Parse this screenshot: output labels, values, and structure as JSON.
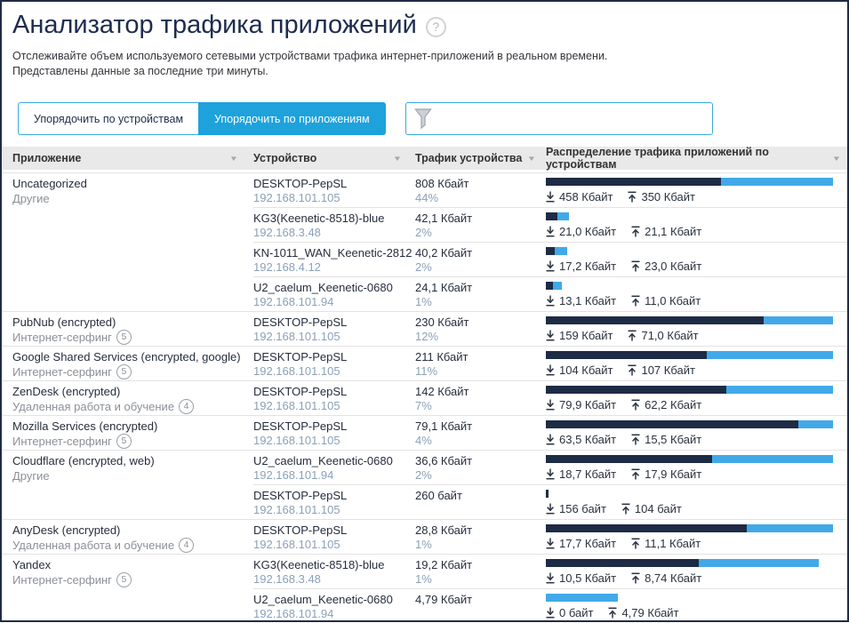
{
  "page": {
    "title": "Анализатор трафика приложений",
    "help_icon": "?",
    "subtitle_line1": "Отслеживайте объем используемого сетевыми устройствами трафика интернет-приложений в реальном времени.",
    "subtitle_line2": "Представлены данные за последние три минуты."
  },
  "toolbar": {
    "sort_by_devices_label": "Упорядочить по устройствам",
    "sort_by_apps_label": "Упорядочить по приложениям",
    "filter_placeholder": ""
  },
  "table": {
    "sort_icon": "▼",
    "columns": [
      "Приложение",
      "Устройство",
      "Трафик устройства",
      "Распределение трафика приложений по устройствам"
    ],
    "groups": [
      {
        "app": "Uncategorized",
        "category": "Другие",
        "category_count": null,
        "devices": [
          {
            "name": "DESKTOP-PepSL",
            "ip": "192.168.101.105",
            "traffic": "808 Кбайт",
            "percent": "44%",
            "down_label": "458 Кбайт",
            "up_label": "350 Кбайт",
            "bar": {
              "width_pct": 100,
              "down_pct": 61
            }
          },
          {
            "name": "KG3(Keenetic-8518)-blue",
            "ip": "192.168.3.48",
            "traffic": "42,1 Кбайт",
            "percent": "2%",
            "down_label": "21,0 Кбайт",
            "up_label": "21,1 Кбайт",
            "bar": {
              "width_pct": 8,
              "down_pct": 50
            }
          },
          {
            "name": "KN-1011_WAN_Keenetic-2812",
            "ip": "192.168.4.12",
            "traffic": "40,2 Кбайт",
            "percent": "2%",
            "down_label": "17,2 Кбайт",
            "up_label": "23,0 Кбайт",
            "bar": {
              "width_pct": 7.5,
              "down_pct": 43
            }
          },
          {
            "name": "U2_caelum_Keenetic-0680",
            "ip": "192.168.101.94",
            "traffic": "24,1 Кбайт",
            "percent": "1%",
            "down_label": "13,1 Кбайт",
            "up_label": "11,0 Кбайт",
            "bar": {
              "width_pct": 5.5,
              "down_pct": 47
            }
          }
        ]
      },
      {
        "app": "PubNub (encrypted)",
        "category": "Интернет-серфинг",
        "category_count": "5",
        "devices": [
          {
            "name": "DESKTOP-PepSL",
            "ip": "192.168.101.105",
            "traffic": "230 Кбайт",
            "percent": "12%",
            "down_label": "159 Кбайт",
            "up_label": "71,0 Кбайт",
            "bar": {
              "width_pct": 100,
              "down_pct": 76
            }
          }
        ]
      },
      {
        "app": "Google Shared Services (encrypted, google)",
        "category": "Интернет-серфинг",
        "category_count": "5",
        "devices": [
          {
            "name": "DESKTOP-PepSL",
            "ip": "192.168.101.105",
            "traffic": "211 Кбайт",
            "percent": "11%",
            "down_label": "104 Кбайт",
            "up_label": "107 Кбайт",
            "bar": {
              "width_pct": 100,
              "down_pct": 56
            }
          }
        ]
      },
      {
        "app": "ZenDesk (encrypted)",
        "category": "Удаленная работа и обучение",
        "category_count": "4",
        "devices": [
          {
            "name": "DESKTOP-PepSL",
            "ip": "192.168.101.105",
            "traffic": "142 Кбайт",
            "percent": "7%",
            "down_label": "79,9 Кбайт",
            "up_label": "62,2 Кбайт",
            "bar": {
              "width_pct": 100,
              "down_pct": 63
            }
          }
        ]
      },
      {
        "app": "Mozilla Services (encrypted)",
        "category": "Интернет-серфинг",
        "category_count": "5",
        "devices": [
          {
            "name": "DESKTOP-PepSL",
            "ip": "192.168.101.105",
            "traffic": "79,1 Кбайт",
            "percent": "4%",
            "down_label": "63,5 Кбайт",
            "up_label": "15,5 Кбайт",
            "bar": {
              "width_pct": 100,
              "down_pct": 88
            }
          }
        ]
      },
      {
        "app": "Cloudflare (encrypted, web)",
        "category": "Другие",
        "category_count": null,
        "devices": [
          {
            "name": "U2_caelum_Keenetic-0680",
            "ip": "192.168.101.94",
            "traffic": "36,6 Кбайт",
            "percent": "2%",
            "down_label": "18,7 Кбайт",
            "up_label": "17,9 Кбайт",
            "bar": {
              "width_pct": 100,
              "down_pct": 58
            }
          },
          {
            "name": "DESKTOP-PepSL",
            "ip": "192.168.101.105",
            "traffic": "260 байт",
            "percent": "",
            "down_label": "156 байт",
            "up_label": "104 байт",
            "bar": {
              "width_pct": 1,
              "down_pct": 100
            }
          }
        ]
      },
      {
        "app": "AnyDesk (encrypted)",
        "category": "Удаленная работа и обучение",
        "category_count": "4",
        "devices": [
          {
            "name": "DESKTOP-PepSL",
            "ip": "192.168.101.105",
            "traffic": "28,8 Кбайт",
            "percent": "1%",
            "down_label": "17,7 Кбайт",
            "up_label": "11,1 Кбайт",
            "bar": {
              "width_pct": 100,
              "down_pct": 70
            }
          }
        ]
      },
      {
        "app": "Yandex",
        "category": "Интернет-серфинг",
        "category_count": "5",
        "devices": [
          {
            "name": "KG3(Keenetic-8518)-blue",
            "ip": "192.168.3.48",
            "traffic": "19,2 Кбайт",
            "percent": "1%",
            "down_label": "10,5 Кбайт",
            "up_label": "8,74 Кбайт",
            "bar": {
              "width_pct": 95,
              "down_pct": 56
            }
          },
          {
            "name": "U2_caelum_Keenetic-0680",
            "ip": "192.168.101.94",
            "traffic": "4,79 Кбайт",
            "percent": "",
            "down_label": "0 байт",
            "up_label": "4,79 Кбайт",
            "bar": {
              "width_pct": 25,
              "down_pct": 0
            }
          }
        ]
      }
    ]
  },
  "colors": {
    "accent_blue": "#1ea2dc",
    "filter_border": "#3aaade",
    "bar_down": "#1e2b45",
    "bar_up": "#42a9e8",
    "header_bg": "#e9e9e9"
  }
}
